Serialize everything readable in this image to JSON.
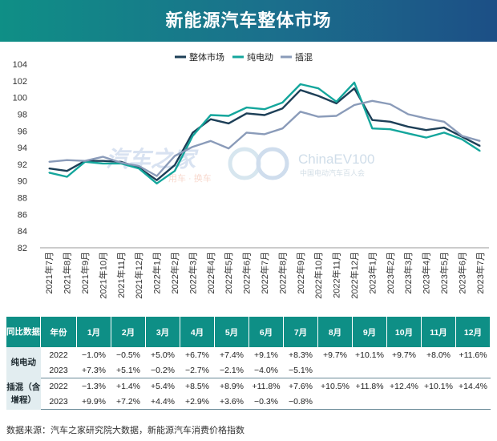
{
  "header": {
    "title": "新能源汽车整体市场"
  },
  "chart_data": {
    "type": "line",
    "title": "新能源汽车整体市场",
    "ylim": [
      82,
      104
    ],
    "yticks": [
      82,
      84,
      86,
      88,
      90,
      92,
      94,
      96,
      98,
      100,
      102,
      104
    ],
    "grid": false,
    "legend_position": "top-center",
    "categories": [
      "2021年7月",
      "2021年8月",
      "2021年9月",
      "2021年10月",
      "2021年11月",
      "2021年12月",
      "2022年1月",
      "2022年2月",
      "2022年3月",
      "2022年4月",
      "2022年5月",
      "2022年6月",
      "2022年7月",
      "2022年8月",
      "2022年9月",
      "2022年10月",
      "2022年11月",
      "2022年12月",
      "2023年1月",
      "2023年2月",
      "2023年3月",
      "2023年4月",
      "2023年5月",
      "2023年6月",
      "2023年7月"
    ],
    "series": [
      {
        "name": "整体市场",
        "color": "#1d3f57",
        "values": [
          91.5,
          91.2,
          92.4,
          92.4,
          92.3,
          91.6,
          90.1,
          91.9,
          95.8,
          97.4,
          96.9,
          98.1,
          97.9,
          98.7,
          100.9,
          100.2,
          99.3,
          101.1,
          97.3,
          97.1,
          96.5,
          96.1,
          96.4,
          95.3,
          94.2
        ]
      },
      {
        "name": "纯电动",
        "color": "#14a69c",
        "values": [
          91.0,
          90.5,
          92.3,
          92.1,
          92.1,
          91.5,
          89.7,
          91.2,
          95.4,
          97.9,
          97.8,
          98.8,
          98.6,
          99.4,
          101.6,
          101.1,
          99.5,
          101.8,
          96.3,
          96.2,
          95.7,
          95.2,
          95.8,
          95.0,
          93.6
        ]
      },
      {
        "name": "插混",
        "color": "#8a9bb9",
        "values": [
          92.3,
          92.5,
          92.4,
          92.9,
          92.2,
          91.8,
          90.6,
          93.0,
          94.1,
          94.8,
          93.9,
          95.8,
          95.6,
          96.3,
          98.3,
          97.7,
          97.8,
          99.1,
          99.6,
          99.2,
          98.0,
          97.5,
          97.1,
          95.4,
          94.8
        ]
      }
    ]
  },
  "table": {
    "corner_label": "同比数据",
    "year_header": "年份",
    "months": [
      "1月",
      "2月",
      "3月",
      "4月",
      "5月",
      "6月",
      "7月",
      "8月",
      "9月",
      "10月",
      "11月",
      "12月"
    ],
    "groups": [
      {
        "label": "纯电动",
        "rows": [
          {
            "year": "2022",
            "values": [
              "−1.0%",
              "−0.5%",
              "+5.0%",
              "+6.7%",
              "+7.4%",
              "+9.1%",
              "+8.3%",
              "+9.7%",
              "+10.1%",
              "+9.7%",
              "+8.0%",
              "+11.6%"
            ]
          },
          {
            "year": "2023",
            "values": [
              "+7.3%",
              "+5.1%",
              "−0.2%",
              "−2.7%",
              "−2.1%",
              "−4.0%",
              "−5.1%",
              "",
              "",
              "",
              "",
              ""
            ]
          }
        ]
      },
      {
        "label": "插混（含增程）",
        "rows": [
          {
            "year": "2022",
            "values": [
              "−1.3%",
              "+1.4%",
              "+5.4%",
              "+8.5%",
              "+8.9%",
              "+11.8%",
              "+7.6%",
              "+10.5%",
              "+11.8%",
              "+12.4%",
              "+10.1%",
              "+14.4%"
            ]
          },
          {
            "year": "2023",
            "values": [
              "+9.9%",
              "+7.2%",
              "+4.4%",
              "+2.9%",
              "+3.6%",
              "−0.3%",
              "−0.8%",
              "",
              "",
              "",
              "",
              ""
            ]
          }
        ]
      }
    ]
  },
  "watermarks": {
    "left_logo": "汽车之家",
    "left_sub": "用车 · 换车",
    "right_logo": "ChinaEV100",
    "right_sub": "中国电动汽车百人会"
  },
  "footer": {
    "source": "数据来源：汽车之家研究院大数据，新能源汽车消费价格指数"
  }
}
